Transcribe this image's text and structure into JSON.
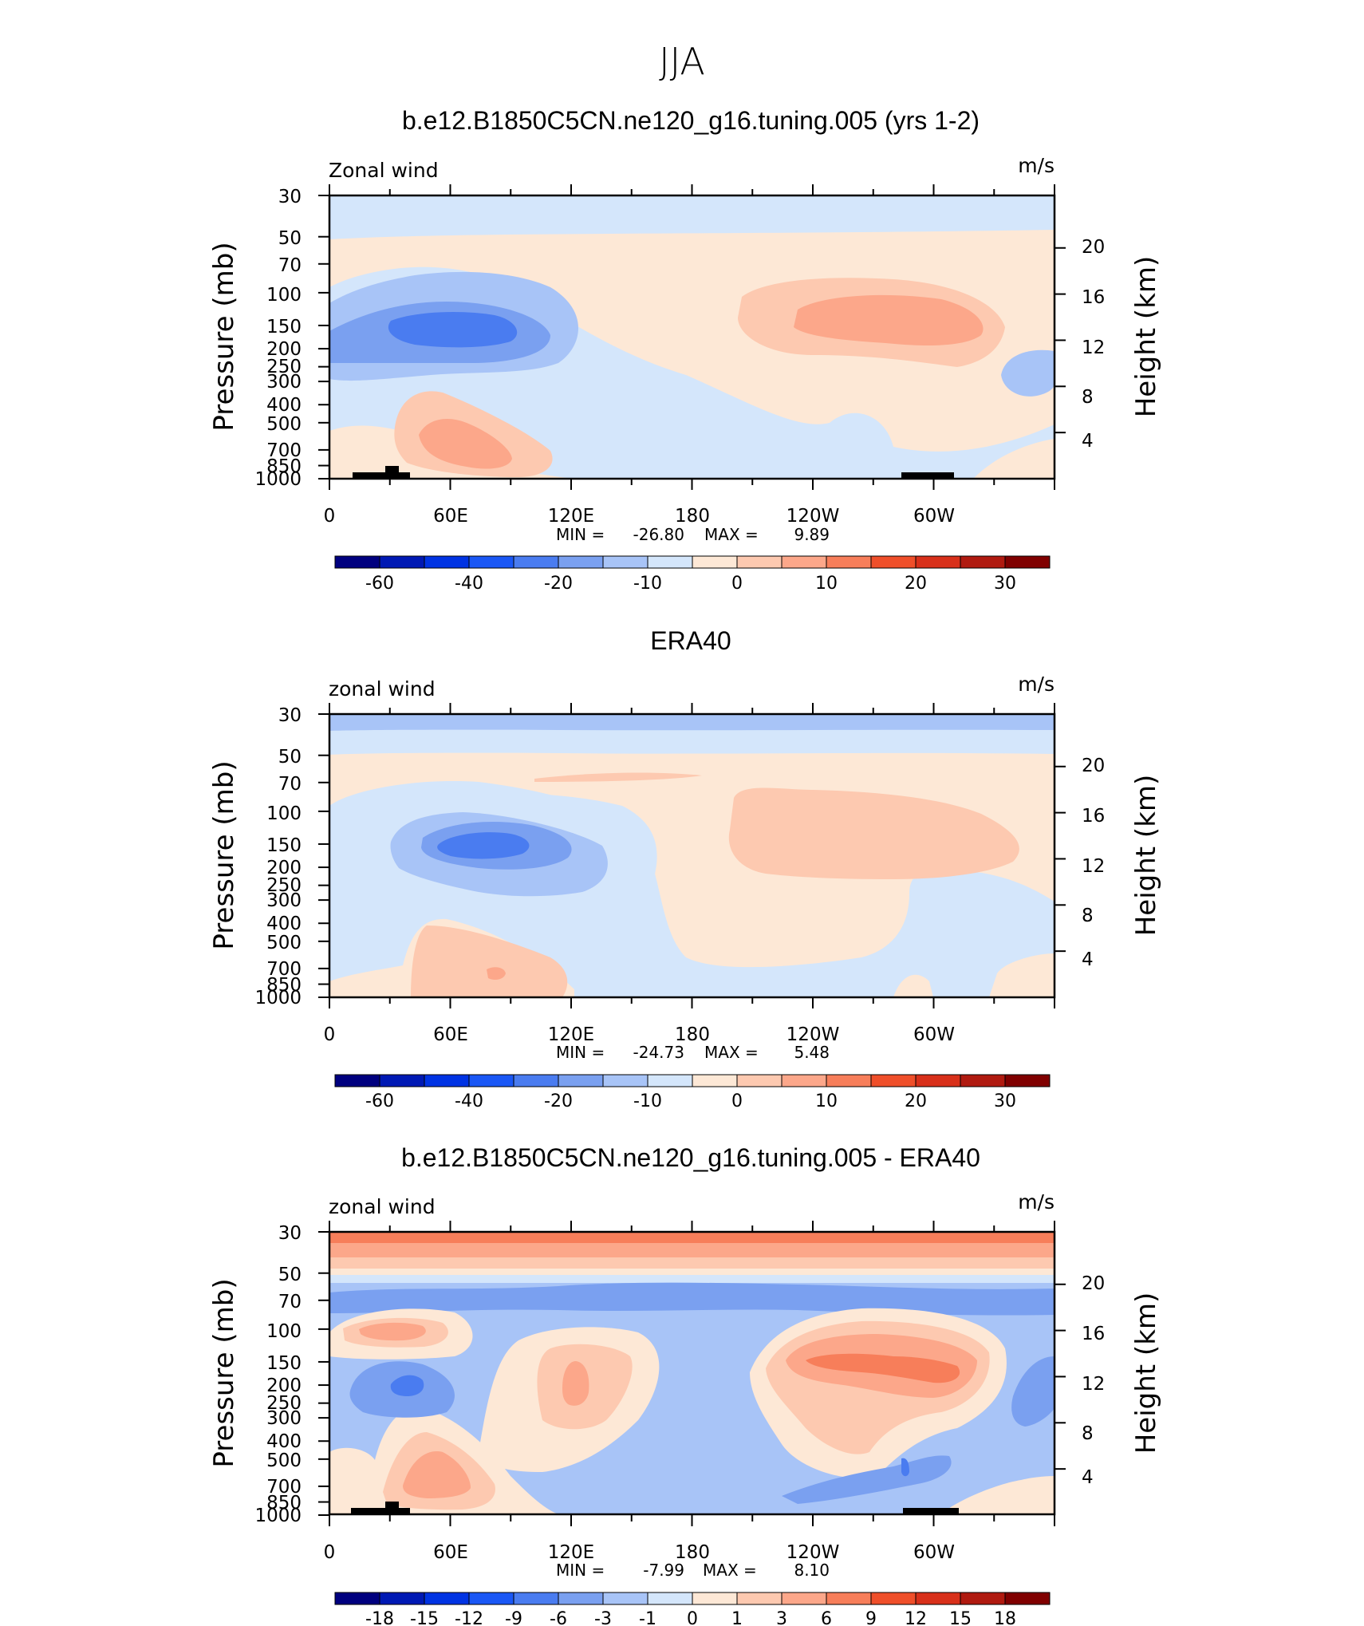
{
  "figure": {
    "title": "JJA"
  },
  "colors": {
    "scale": [
      "#00007f",
      "#0019b4",
      "#0033e3",
      "#1a57f5",
      "#4a7cf0",
      "#7aa0f0",
      "#a8c4f7",
      "#d4e6fb",
      "#fde8d6",
      "#fdc9b0",
      "#fca78a",
      "#f77e5a",
      "#ef4f2a",
      "#d8301a",
      "#b01a10",
      "#800000"
    ]
  },
  "chart_data": [
    {
      "type": "heatmap",
      "title": "b.e12.B1850C5CN.ne120_g16.tuning.005 (yrs 1-2)",
      "field_label": "Zonal wind",
      "units": "m/s",
      "xlabel": "",
      "ylabel": "Pressure (mb)",
      "ylabel_right": "Height (km)",
      "x_ticks": [
        "0",
        "60E",
        "120E",
        "180",
        "120W",
        "60W"
      ],
      "y_ticks": [
        "30",
        "50",
        "70",
        "100",
        "150",
        "200",
        "250",
        "300",
        "400",
        "500",
        "700",
        "850",
        "1000"
      ],
      "y_right_ticks": [
        "20",
        "16",
        "12",
        "8",
        "4"
      ],
      "stats": {
        "min_label": "MIN =",
        "min": "-26.80",
        "max_label": "MAX =",
        "max": "9.89"
      },
      "colorbar_levels": [
        -70,
        -60,
        -50,
        -40,
        -30,
        -20,
        -15,
        -10,
        -5,
        0,
        5,
        10,
        15,
        20,
        25,
        30
      ],
      "colorbar_labels": [
        "-60",
        "-40",
        "-20",
        "-10",
        "0",
        "10",
        "20",
        "30"
      ],
      "features": [
        {
          "name": "asian-jet-easterly",
          "center_lon": 75,
          "center_p": 150,
          "min": -26.8
        },
        {
          "name": "pacific-westerly",
          "center_lon": 250,
          "center_p": 150,
          "max": 9.89
        },
        {
          "name": "somali-jet",
          "center_lon": 65,
          "center_p": 700,
          "max": 8
        }
      ]
    },
    {
      "type": "heatmap",
      "title": "ERA40",
      "field_label": "zonal wind",
      "units": "m/s",
      "xlabel": "",
      "ylabel": "Pressure (mb)",
      "ylabel_right": "Height (km)",
      "x_ticks": [
        "0",
        "60E",
        "120E",
        "180",
        "120W",
        "60W"
      ],
      "y_ticks": [
        "30",
        "50",
        "70",
        "100",
        "150",
        "200",
        "250",
        "300",
        "400",
        "500",
        "700",
        "850",
        "1000"
      ],
      "y_right_ticks": [
        "20",
        "16",
        "12",
        "8",
        "4"
      ],
      "stats": {
        "min_label": "MIN =",
        "min": "-24.73",
        "max_label": "MAX =",
        "max": "5.48"
      },
      "colorbar_levels": [
        -70,
        -60,
        -50,
        -40,
        -30,
        -20,
        -15,
        -10,
        -5,
        0,
        5,
        10,
        15,
        20,
        25,
        30
      ],
      "colorbar_labels": [
        "-60",
        "-40",
        "-20",
        "-10",
        "0",
        "10",
        "20",
        "30"
      ],
      "features": [
        {
          "name": "asian-jet-easterly",
          "center_lon": 80,
          "center_p": 150,
          "min": -24.73
        },
        {
          "name": "pacific-westerly",
          "center_lon": 250,
          "center_p": 130,
          "max": 5.48
        }
      ]
    },
    {
      "type": "heatmap",
      "title": "b.e12.B1850C5CN.ne120_g16.tuning.005 - ERA40",
      "field_label": "zonal wind",
      "units": "m/s",
      "xlabel": "",
      "ylabel": "Pressure (mb)",
      "ylabel_right": "Height (km)",
      "x_ticks": [
        "0",
        "60E",
        "120E",
        "180",
        "120W",
        "60W"
      ],
      "y_ticks": [
        "30",
        "50",
        "70",
        "100",
        "150",
        "200",
        "250",
        "300",
        "400",
        "500",
        "700",
        "850",
        "1000"
      ],
      "y_right_ticks": [
        "20",
        "16",
        "12",
        "8",
        "4"
      ],
      "stats": {
        "min_label": "MIN =",
        "min": "-7.99",
        "max_label": "MAX =",
        "max": "8.10"
      },
      "colorbar_levels": [
        -21,
        -18,
        -15,
        -12,
        -9,
        -6,
        -3,
        -1,
        0,
        1,
        3,
        6,
        9,
        12,
        15,
        18
      ],
      "colorbar_labels": [
        "-18",
        "-15",
        "-12",
        "-9",
        "-6",
        "-3",
        "-1",
        "0",
        "1",
        "3",
        "6",
        "9",
        "12",
        "15",
        "18"
      ],
      "features": [
        {
          "name": "top-positive-band",
          "p_range": [
            30,
            45
          ],
          "max": 8.1
        },
        {
          "name": "pacific-positive",
          "center_lon": 250,
          "center_p": 150,
          "max": 7
        },
        {
          "name": "asian-negative",
          "center_lon": 35,
          "center_p": 200,
          "min": -7.99
        }
      ]
    }
  ]
}
